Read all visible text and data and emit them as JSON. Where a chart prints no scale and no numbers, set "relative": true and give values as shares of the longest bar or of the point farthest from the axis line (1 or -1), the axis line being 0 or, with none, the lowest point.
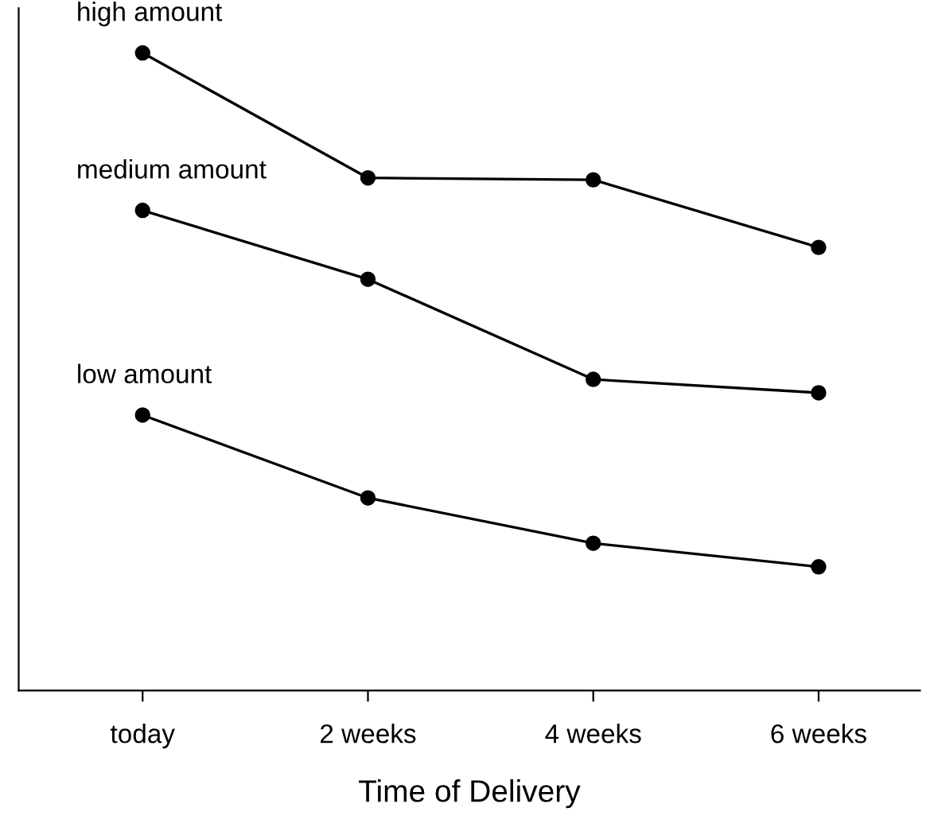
{
  "chart_data": {
    "type": "line",
    "relative": true,
    "xlabel": "Time of Delivery",
    "categories": [
      "today",
      "2 weeks",
      "4 weeks",
      "6 weeks"
    ],
    "marker": "circle",
    "line_style": "solid",
    "grid": false,
    "legend": false,
    "series": [
      {
        "name": "high amount",
        "color": "#000000",
        "values": [
          1,
          0.804,
          0.801,
          0.695
        ]
      },
      {
        "name": "medium amount",
        "color": "#000000",
        "values": [
          0.753,
          0.645,
          0.488,
          0.467
        ]
      },
      {
        "name": "low amount",
        "color": "#000000",
        "values": [
          0.432,
          0.302,
          0.231,
          0.194
        ]
      }
    ]
  }
}
